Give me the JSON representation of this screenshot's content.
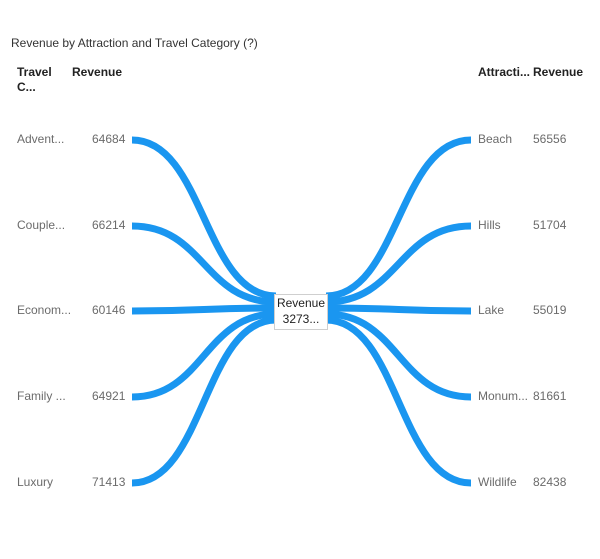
{
  "title": "Revenue by Attraction and Travel Category (?)",
  "left_header": {
    "category": "Travel C...",
    "value": "Revenue"
  },
  "right_header": {
    "category": "Attracti...",
    "value": "Revenue"
  },
  "center": {
    "label": "Revenue",
    "value": "3273..."
  },
  "colors": {
    "flow": "#1a96f0",
    "text": "#6b6b6b"
  },
  "chart_data": {
    "type": "sankey",
    "center_node": {
      "label": "Revenue",
      "value_display": "3273..."
    },
    "left_nodes": [
      {
        "label": "Advent...",
        "value": 64684
      },
      {
        "label": "Couple...",
        "value": 66214
      },
      {
        "label": "Econom...",
        "value": 60146
      },
      {
        "label": "Family ...",
        "value": 64921
      },
      {
        "label": "Luxury",
        "value": 71413
      }
    ],
    "right_nodes": [
      {
        "label": "Beach",
        "value": 56556
      },
      {
        "label": "Hills",
        "value": 51704
      },
      {
        "label": "Lake",
        "value": 55019
      },
      {
        "label": "Monum...",
        "value": 81661
      },
      {
        "label": "Wildlife",
        "value": 82438
      }
    ]
  }
}
